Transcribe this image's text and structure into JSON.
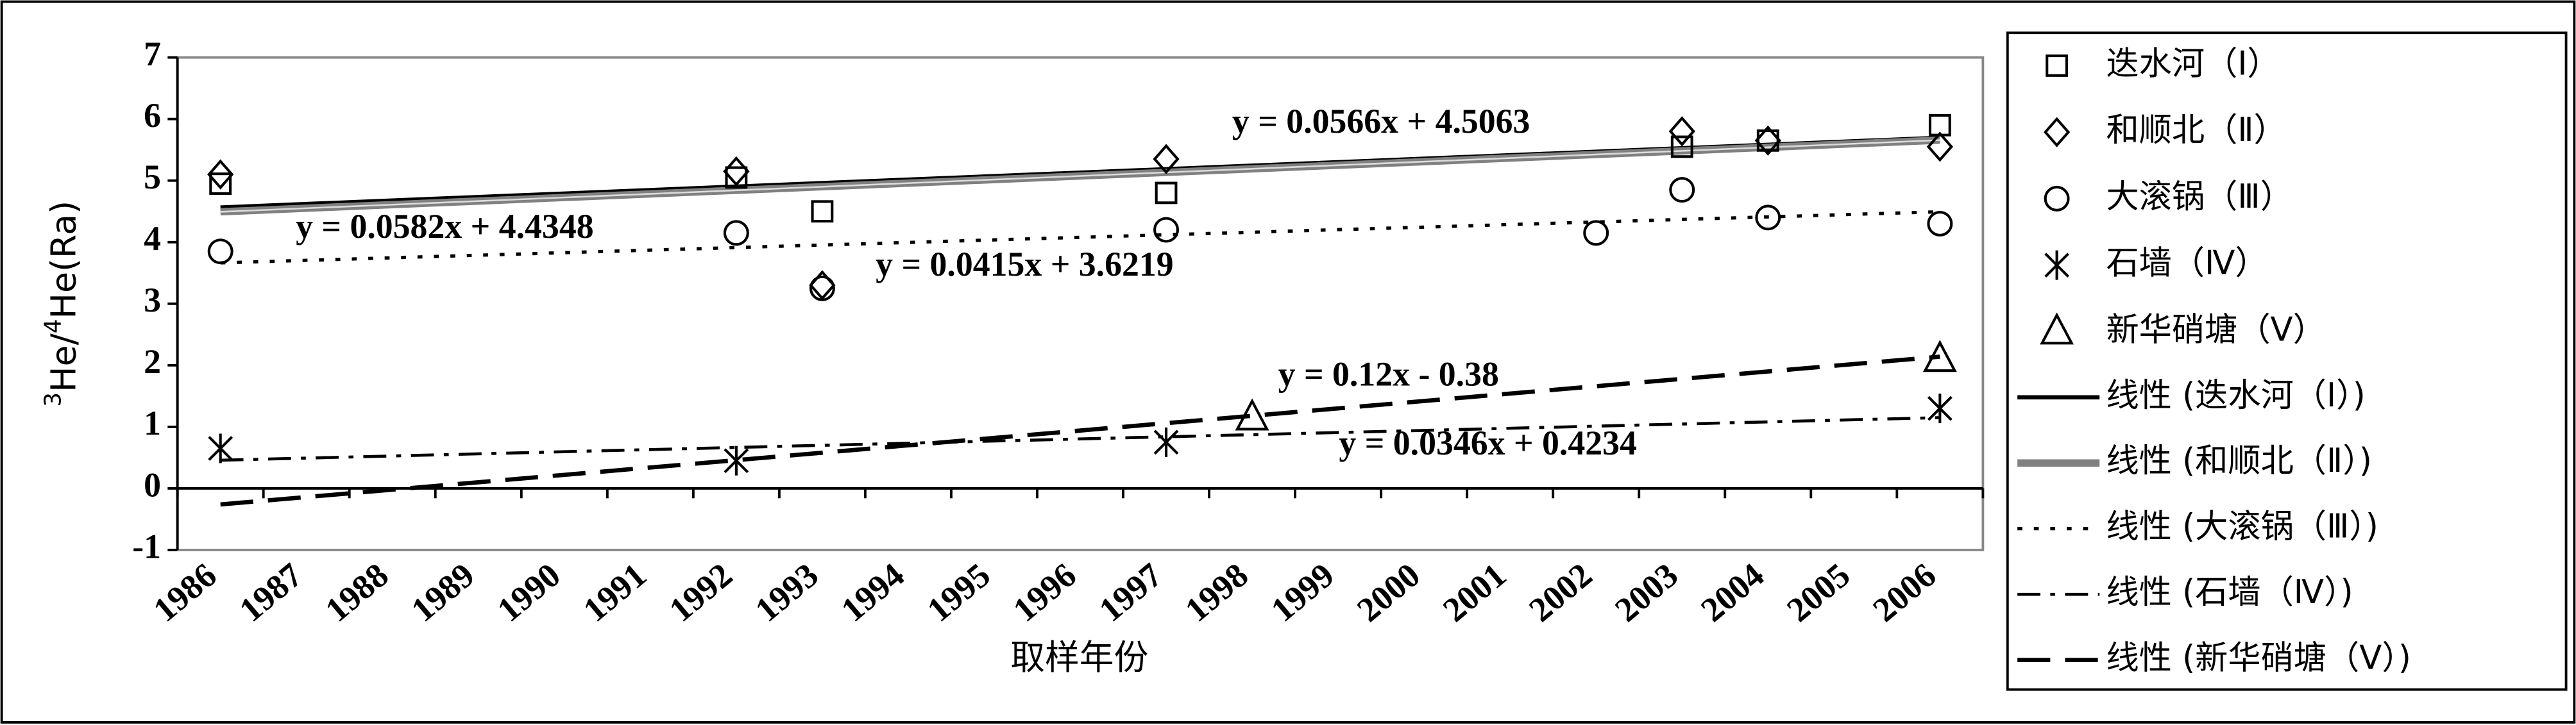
{
  "chart_data": {
    "type": "scatter",
    "xlabel": "取样年份",
    "ylabel": [
      "3",
      "He/",
      "4",
      "He(Ra)"
    ],
    "categories": [
      "1986",
      "1987",
      "1988",
      "1989",
      "1990",
      "1991",
      "1992",
      "1993",
      "1994",
      "1995",
      "1996",
      "1997",
      "1998",
      "1999",
      "2000",
      "2001",
      "2002",
      "2003",
      "2004",
      "2005",
      "2006"
    ],
    "ylim": [
      -1,
      7
    ],
    "yticks": [
      -1,
      0,
      1,
      2,
      3,
      4,
      5,
      6,
      7
    ],
    "grid": false,
    "legend": "right",
    "series": [
      {
        "name": "迭水河（Ⅰ）",
        "marker": "square",
        "color": "#000000",
        "values": [
          4.95,
          null,
          null,
          null,
          null,
          null,
          5.05,
          4.5,
          null,
          null,
          null,
          4.8,
          null,
          null,
          null,
          null,
          null,
          5.55,
          5.65,
          null,
          5.9
        ],
        "trendline": {
          "name": "线性 (迭水河（Ⅰ）)",
          "label": "y = 0.0566x + 4.5063",
          "slope": 0.0566,
          "intercept": 4.5063,
          "color": "#000000",
          "dash": "solid"
        }
      },
      {
        "name": "和顺北（Ⅱ）",
        "marker": "diamond",
        "color": "#000000",
        "values": [
          5.1,
          null,
          null,
          null,
          null,
          null,
          5.15,
          3.3,
          null,
          null,
          null,
          5.35,
          null,
          null,
          null,
          null,
          null,
          5.8,
          5.65,
          null,
          5.55
        ],
        "trendline": {
          "name": "线性 (和顺北（Ⅱ）)",
          "label": "y = 0.0582x + 4.4348",
          "slope": 0.0582,
          "intercept": 4.4348,
          "color": "#808080",
          "dash": "thick"
        }
      },
      {
        "name": "大滚锅（Ⅲ）",
        "marker": "circle",
        "color": "#000000",
        "values": [
          3.85,
          null,
          null,
          null,
          null,
          null,
          4.15,
          3.25,
          null,
          null,
          null,
          4.2,
          null,
          null,
          null,
          null,
          4.15,
          4.85,
          4.4,
          null,
          4.3
        ],
        "trendline": {
          "name": "线性 (大滚锅（Ⅲ）)",
          "label": "y = 0.0415x + 3.6219",
          "slope": 0.0415,
          "intercept": 3.6219,
          "color": "#000000",
          "dash": "dot"
        }
      },
      {
        "name": "石墙（Ⅳ）",
        "marker": "asterisk",
        "color": "#000000",
        "values": [
          0.65,
          null,
          null,
          null,
          null,
          null,
          0.45,
          null,
          null,
          null,
          null,
          0.75,
          null,
          null,
          null,
          null,
          null,
          null,
          null,
          null,
          1.3
        ],
        "trendline": {
          "name": "线性 (石墙（Ⅳ）)",
          "label": "y = 0.0346x + 0.4234",
          "slope": 0.0346,
          "intercept": 0.4234,
          "color": "#000000",
          "dash": "dash-dot"
        }
      },
      {
        "name": "新华硝塘（Ⅴ）",
        "marker": "triangle",
        "color": "#000000",
        "values": [
          null,
          null,
          null,
          null,
          null,
          null,
          null,
          null,
          null,
          null,
          null,
          null,
          1.15,
          null,
          null,
          null,
          null,
          null,
          null,
          null,
          2.1
        ],
        "trendline": {
          "name": "线性 (新华硝塘（Ⅴ）)",
          "label": "y = 0.12x - 0.38",
          "slope": 0.12,
          "intercept": -0.38,
          "color": "#000000",
          "dash": "dash"
        }
      }
    ]
  }
}
